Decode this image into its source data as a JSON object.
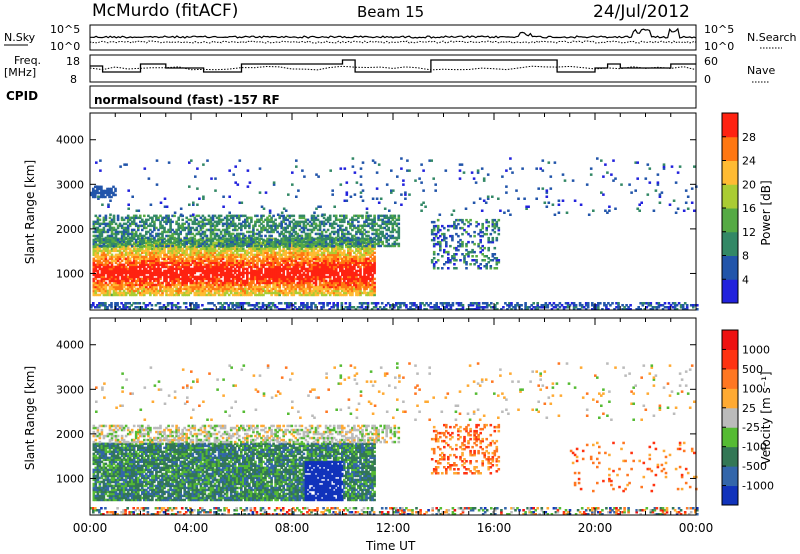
{
  "header": {
    "station": "McMurdo (fitACF)",
    "beam": "Beam 15",
    "date": "24/Jul/2012",
    "cpid": "normalsound (fast) -157 RF"
  },
  "chart_data": [
    {
      "id": "noise",
      "type": "line",
      "left_label": "N.Sky",
      "right_label": "N.Search",
      "left_ticks": [
        "10^5",
        "10^0"
      ],
      "right_ticks": [
        "10^5",
        "10^0"
      ]
    },
    {
      "id": "freq",
      "type": "line",
      "left_label_1": "Freq.",
      "left_label_2": "[MHz]",
      "left_ticks": [
        "18",
        "8"
      ],
      "right_label": "Nave",
      "right_ticks": [
        "60",
        "0"
      ],
      "ylim_left": [
        8,
        18
      ],
      "ylim_right": [
        0,
        60
      ],
      "cpid_label": "CPID"
    },
    {
      "id": "power",
      "type": "heatmap",
      "ylabel": "Slant Range [km]",
      "yticks": [
        1000,
        2000,
        3000,
        4000
      ],
      "ylim": [
        180,
        4600
      ],
      "colorbar_label": "Power [dB]",
      "colorbar_ticks": [
        "4",
        "8",
        "12",
        "16",
        "20",
        "24",
        "28"
      ],
      "colorbar_colors": [
        "#2222dd",
        "#2255aa",
        "#338866",
        "#55aa44",
        "#aacc33",
        "#ffbb33",
        "#ff7711",
        "#ff2211"
      ]
    },
    {
      "id": "velocity",
      "type": "heatmap",
      "ylabel": "Slant Range [km]",
      "yticks": [
        1000,
        2000,
        3000,
        4000
      ],
      "ylim": [
        180,
        4600
      ],
      "xlabel": "Time UT",
      "xticks": [
        "00:00",
        "04:00",
        "08:00",
        "12:00",
        "16:00",
        "20:00",
        "00:00"
      ],
      "xlim_hours": [
        0,
        24
      ],
      "colorbar_label": "Velocity [m s⁻¹]",
      "colorbar_ticks": [
        "1000",
        "500",
        "100",
        "25",
        "-25",
        "-100",
        "-500",
        "-1000"
      ],
      "colorbar_colors": [
        "#1133bb",
        "#3366aa",
        "#337755",
        "#55bb33",
        "#bbbbbb",
        "#ffaa33",
        "#ff7722",
        "#ff3311",
        "#ee1111"
      ]
    }
  ]
}
